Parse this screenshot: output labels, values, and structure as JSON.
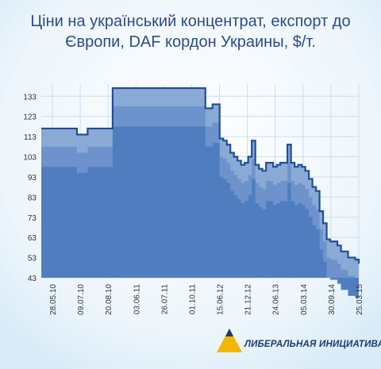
{
  "title_line1": "Ціни на український концентрат, експорт до",
  "title_line2": "Європи, DAF кордон Украины, $/т.",
  "logo": {
    "text": "ЛИБЕРАЛЬНАЯ ИНИЦИАТИВА",
    "colors": [
      "#f2b705",
      "#1d3a6e"
    ]
  },
  "colors": {
    "area_top": "#8aaad6",
    "area_mid": "#6e93cc",
    "area_low": "#4f7dbf",
    "line": "#1f4e96",
    "background": "#e8f3fb"
  },
  "chart_data": {
    "type": "area",
    "title": "Ціни на український концентрат, експорт до Європи, DAF кордон Украины, $/т.",
    "xlabel": "",
    "ylabel": "",
    "ylim": [
      43,
      139
    ],
    "y_ticks": [
      43,
      53,
      63,
      73,
      83,
      93,
      103,
      113,
      123,
      133
    ],
    "x_tick_labels": [
      "28.05.10",
      "09.07.10",
      "20.08.10",
      "03.06.11",
      "26.07.11",
      "01.10.11",
      "15.06.12",
      "21.12.12",
      "24.06.13",
      "05.03.14",
      "30.09.14",
      "25.03.15"
    ],
    "grid": true,
    "series": [
      {
        "values": [
          117,
          117,
          117,
          117,
          117,
          117,
          117,
          117,
          117,
          117,
          114,
          114,
          114,
          117,
          117,
          117,
          117,
          117,
          117,
          117,
          137,
          137,
          137,
          137,
          137,
          137,
          137,
          137,
          137,
          137,
          137,
          137,
          137,
          137,
          137,
          137,
          137,
          137,
          137,
          137,
          137,
          137,
          137,
          137,
          137,
          137,
          127,
          127,
          129,
          129,
          112,
          111,
          109,
          105,
          103,
          101,
          99,
          100,
          103,
          111,
          99,
          97,
          96,
          100,
          100,
          98,
          99,
          100,
          100,
          109,
          100,
          98,
          99,
          98,
          96,
          92,
          88,
          86,
          76,
          70,
          62,
          61,
          61,
          59,
          56,
          56,
          53,
          53,
          52,
          50
        ]
      }
    ]
  }
}
